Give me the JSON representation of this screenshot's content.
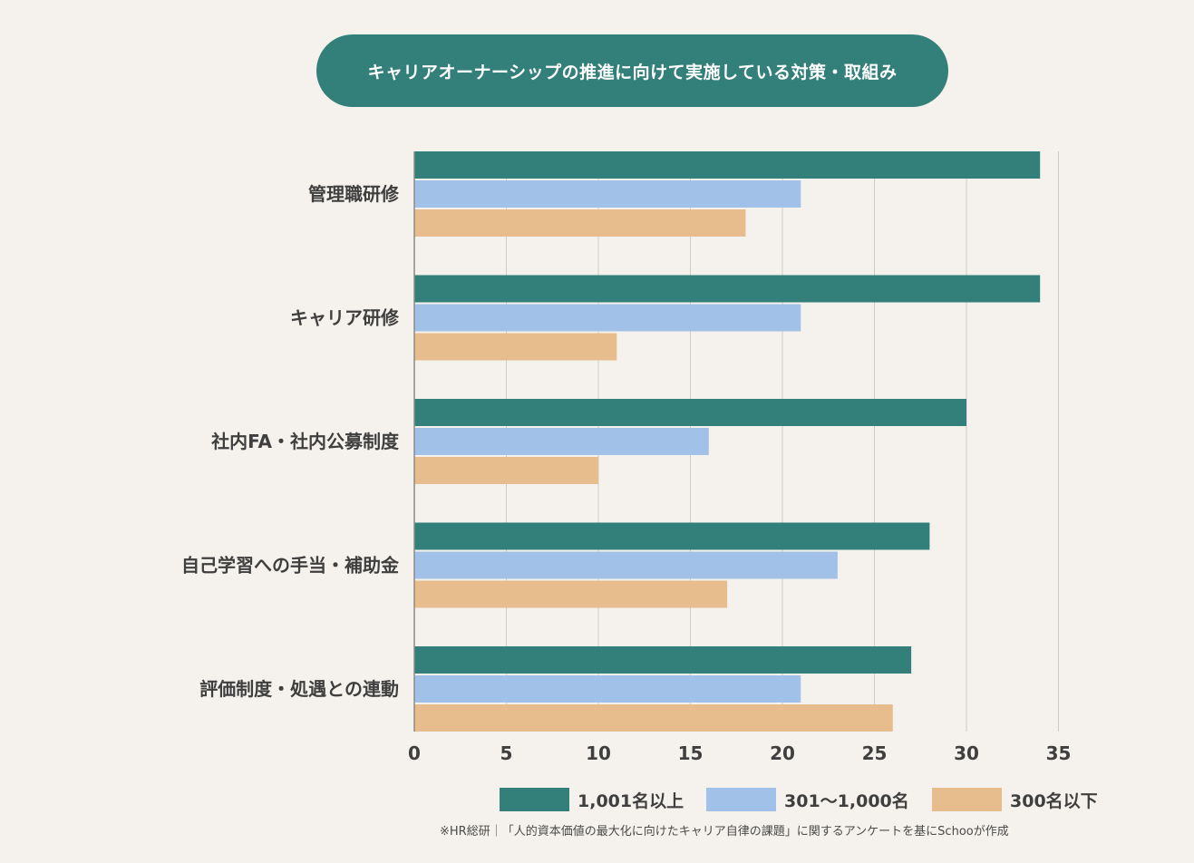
{
  "header": {
    "title": "キャリアオーナーシップの推進に向けて実施している対策・取組み"
  },
  "chart_data": {
    "type": "bar",
    "orientation": "horizontal",
    "title": "キャリアオーナーシップの推進に向けて実施している対策・取組み",
    "categories": [
      "管理職研修",
      "キャリア研修",
      "社内FA・社内公募制度",
      "自己学習への手当・補助金",
      "評価制度・処遇との連動"
    ],
    "series": [
      {
        "name": "1,001名以上",
        "color": "#33807a",
        "values": [
          34,
          34,
          30,
          28,
          27
        ]
      },
      {
        "name": "301〜1,000名",
        "color": "#a2c1e8",
        "values": [
          21,
          21,
          16,
          23,
          21
        ]
      },
      {
        "name": "300名以下",
        "color": "#e8bd8d",
        "values": [
          18,
          11,
          10,
          17,
          26
        ]
      }
    ],
    "xlim": [
      0,
      35
    ],
    "xticks": [
      0,
      5,
      10,
      15,
      20,
      25,
      30,
      35
    ],
    "grid": true,
    "legend_position": "bottom"
  },
  "footer": {
    "source": "※HR総研｜「人的資本価値の最大化に向けたキャリア自律の課題」に関するアンケートを基にSchooが作成"
  }
}
